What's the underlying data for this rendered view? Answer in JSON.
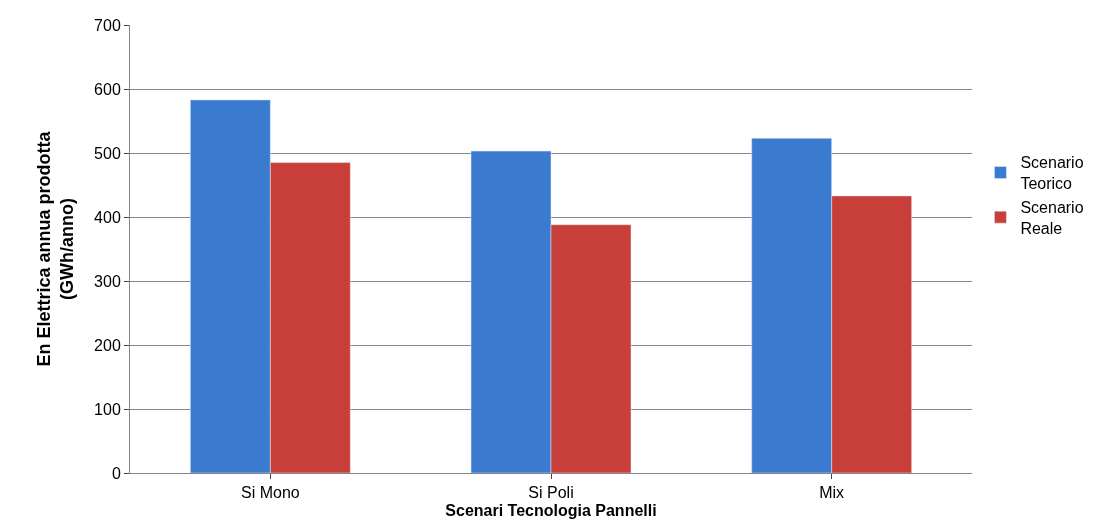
{
  "chart_data": {
    "type": "bar",
    "xlabel": "Scenari Tecnologia Pannelli",
    "ylabel": "En Elettrica annua prodotta\n(GWh/anno)",
    "categories": [
      "Si Mono",
      "Si Poli",
      "Mix"
    ],
    "series": [
      {
        "name": "Scenario Teorico",
        "color": "#3a7bd0",
        "values": [
          583,
          503,
          523
        ]
      },
      {
        "name": "Scenario Reale",
        "color": "#c83f3a",
        "values": [
          485,
          388,
          433
        ]
      }
    ],
    "ylim": [
      0,
      700
    ],
    "yticks": [
      0,
      100,
      200,
      300,
      400,
      500,
      600,
      700
    ],
    "grid": "y",
    "legend": "right"
  }
}
